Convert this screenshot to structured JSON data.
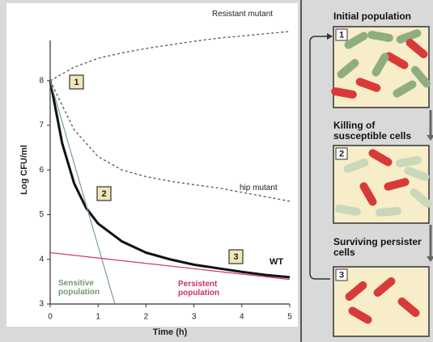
{
  "chart_data": {
    "type": "line",
    "xlabel": "Time (h)",
    "ylabel": "Log CFU/ml",
    "xlim": [
      0,
      5
    ],
    "xticks": [
      0,
      1,
      2,
      3,
      4,
      5
    ],
    "ylim": [
      3,
      8.9
    ],
    "yticks": [
      3,
      4,
      5,
      6,
      7,
      8
    ],
    "annotations": [
      "1",
      "2",
      "3"
    ],
    "series": [
      {
        "name": "Resistant mutant",
        "color": "#555555",
        "style": "dashed",
        "x": [
          0,
          0.5,
          1,
          1.5,
          2,
          2.5,
          3,
          3.5,
          4,
          4.5,
          5
        ],
        "values": [
          8,
          8.3,
          8.5,
          8.62,
          8.72,
          8.8,
          8.88,
          8.95,
          9.0,
          9.05,
          9.1
        ]
      },
      {
        "name": "hip mutant",
        "color": "#555555",
        "style": "dashed",
        "x": [
          0,
          0.5,
          1,
          1.5,
          2,
          2.5,
          3,
          3.5,
          4,
          4.5,
          5
        ],
        "values": [
          8,
          6.9,
          6.3,
          6.0,
          5.85,
          5.75,
          5.67,
          5.6,
          5.5,
          5.4,
          5.3
        ]
      },
      {
        "name": "WT",
        "color": "#111111",
        "style": "bold",
        "x": [
          0,
          0.25,
          0.5,
          0.75,
          1,
          1.5,
          2,
          2.5,
          3,
          3.5,
          4,
          4.5,
          5
        ],
        "values": [
          8,
          6.6,
          5.7,
          5.15,
          4.8,
          4.4,
          4.15,
          4.0,
          3.88,
          3.8,
          3.72,
          3.65,
          3.6
        ]
      },
      {
        "name": "Sensitive population",
        "color": "#7aa37a",
        "style": "solid",
        "x": [
          0,
          1.35
        ],
        "values": [
          8,
          3
        ]
      },
      {
        "name": "Persistent population",
        "color": "#d0306a",
        "style": "solid",
        "x": [
          0,
          5
        ],
        "values": [
          4.15,
          3.55
        ]
      }
    ]
  },
  "panels": [
    {
      "number": "1",
      "title": "Initial population"
    },
    {
      "number": "2",
      "title": "Killing of susceptible cells"
    },
    {
      "number": "3",
      "title": "Surviving persister cells"
    }
  ]
}
